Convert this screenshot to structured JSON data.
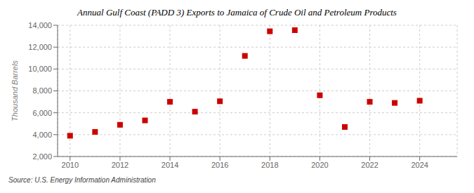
{
  "chart_data": {
    "type": "scatter",
    "title": "Annual Gulf Coast (PADD 3) Exports to Jamaica of Crude Oil and Petroleum Products",
    "y_label": "Thousand Barrels",
    "annotation": "Source: U.S. Energy Information Administration",
    "x": [
      2010,
      2011,
      2012,
      2013,
      2014,
      2015,
      2016,
      2017,
      2018,
      2019,
      2020,
      2021,
      2022,
      2023,
      2024
    ],
    "values": [
      3900,
      4250,
      4900,
      5300,
      7000,
      6100,
      7050,
      11200,
      13450,
      13550,
      7600,
      4700,
      7000,
      6900,
      7100
    ],
    "color": "#cc0000",
    "marker": "square",
    "xlim": [
      2009.5,
      2025.5
    ],
    "xticks": [
      2010,
      2012,
      2014,
      2016,
      2018,
      2020,
      2022,
      2024
    ],
    "ylim": [
      2000,
      14000
    ],
    "yticks": [
      {
        "value": 2000,
        "label": "2,000"
      },
      {
        "value": 4000,
        "label": "4,000"
      },
      {
        "value": 6000,
        "label": "6,000"
      },
      {
        "value": 8000,
        "label": "8,000"
      },
      {
        "value": 10000,
        "label": "10,000"
      },
      {
        "value": 12000,
        "label": "12,000"
      },
      {
        "value": 14000,
        "label": "14,000"
      }
    ],
    "grid": true
  }
}
